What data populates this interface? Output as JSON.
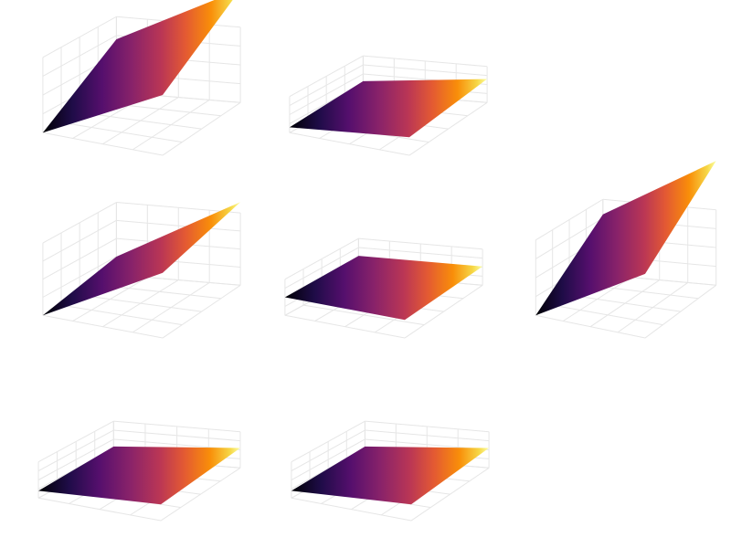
{
  "chart_data": [
    {
      "type": "surface",
      "colormap": "inferno",
      "grid": true,
      "view": "wide",
      "surface": {
        "z00": 0.0,
        "z10": 0.8,
        "z01": 0.7,
        "z11": 1.5
      }
    },
    {
      "type": "surface",
      "colormap": "inferno",
      "grid": true,
      "view": "flat",
      "surface": {
        "z00": 0.15,
        "z10": 0.5,
        "z01": 0.3,
        "z11": 0.65
      }
    },
    {
      "type": "surface",
      "colormap": "inferno",
      "grid": true,
      "view": "empty",
      "surface": null
    },
    {
      "type": "surface",
      "colormap": "inferno",
      "grid": true,
      "view": "steep",
      "surface": {
        "z00": 0.0,
        "z10": 0.9,
        "z01": 0.25,
        "z11": 1.15
      }
    },
    {
      "type": "surface",
      "colormap": "inferno",
      "grid": true,
      "view": "flat",
      "surface": {
        "z00": 0.5,
        "z10": 0.5,
        "z01": 0.52,
        "z11": 0.52
      }
    },
    {
      "type": "surface",
      "colormap": "inferno",
      "grid": true,
      "view": "wide",
      "surface": {
        "z00": 0.0,
        "z10": 0.85,
        "z01": 0.8,
        "z11": 1.65
      }
    },
    {
      "type": "surface",
      "colormap": "inferno",
      "grid": true,
      "view": "flat",
      "surface": {
        "z00": 0.2,
        "z10": 0.45,
        "z01": 0.3,
        "z11": 0.55
      }
    },
    {
      "type": "surface",
      "colormap": "inferno",
      "grid": true,
      "view": "flat",
      "surface": {
        "z00": 0.2,
        "z10": 0.45,
        "z01": 0.3,
        "z11": 0.55
      }
    },
    {
      "type": "surface",
      "colormap": "inferno",
      "grid": true,
      "view": "empty",
      "surface": null
    }
  ]
}
